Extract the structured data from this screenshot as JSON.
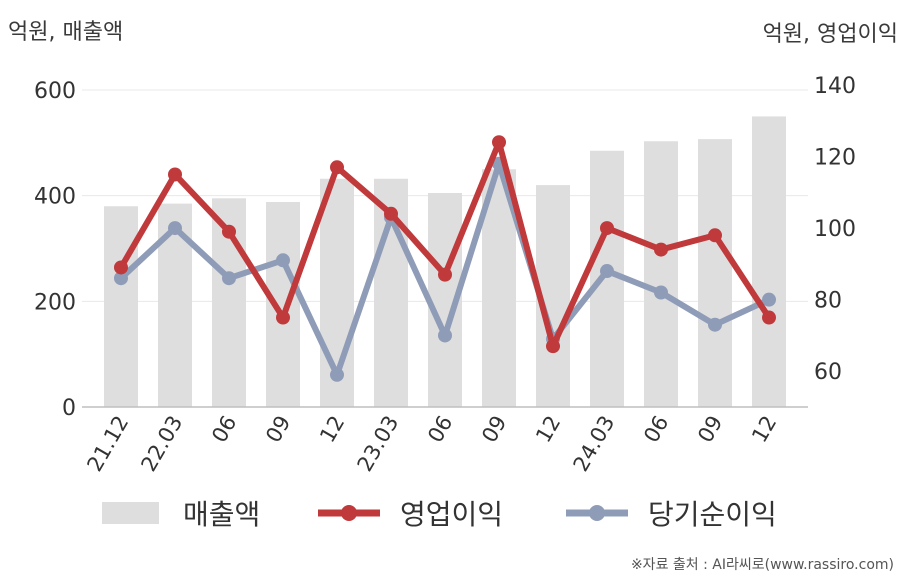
{
  "left_axis_title": "억원, 매출액",
  "right_axis_title": "억원, 영업이익",
  "source_note": "※자료 출처 : AI라씨로(www.rassiro.com)",
  "colors": {
    "bar": "#dedede",
    "operating_profit": "#c0393b",
    "net_income": "#8f9cb8",
    "axis": "#bfbfbf",
    "grid": "#e8e8e8",
    "text": "#333333"
  },
  "chart_data": {
    "type": "bar",
    "categories": [
      "21.12",
      "22.03",
      "06",
      "09",
      "12",
      "23.03",
      "06",
      "09",
      "12",
      "24.03",
      "06",
      "09",
      "12"
    ],
    "y_left": {
      "ylim": [
        0,
        600
      ],
      "ticks": [
        0,
        200,
        400,
        600
      ]
    },
    "y_right": {
      "ylim": [
        50,
        140
      ],
      "ticks": [
        60,
        80,
        100,
        120,
        140
      ]
    },
    "grid": true,
    "legend_position": "bottom",
    "series": [
      {
        "name": "매출액",
        "type": "bar",
        "axis": "left",
        "values": [
          380,
          385,
          395,
          388,
          432,
          432,
          405,
          450,
          420,
          485,
          503,
          507,
          550
        ]
      },
      {
        "name": "영업이익",
        "type": "line",
        "axis": "right",
        "values": [
          89,
          115,
          99,
          75,
          117,
          104,
          87,
          124,
          67,
          100,
          94,
          98,
          75
        ]
      },
      {
        "name": "당기순이익",
        "type": "line",
        "axis": "right",
        "values": [
          86,
          100,
          86,
          91,
          59,
          103,
          70,
          118,
          69,
          88,
          82,
          73,
          80
        ]
      }
    ]
  }
}
